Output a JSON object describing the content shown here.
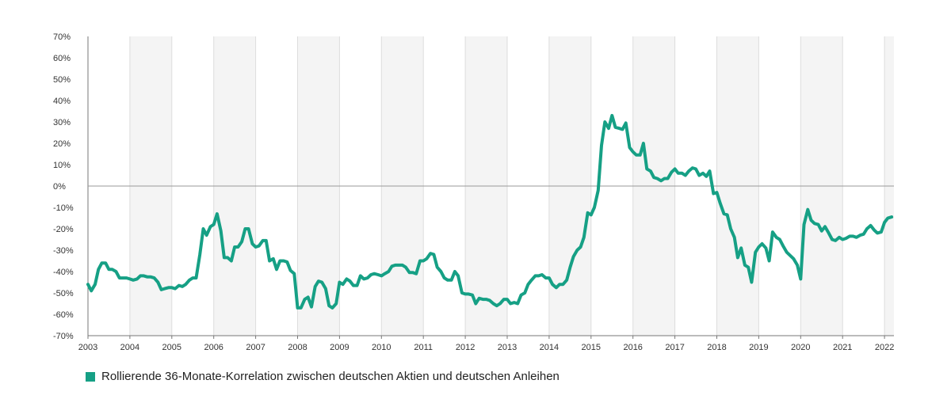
{
  "chart_data": {
    "type": "line",
    "title": "",
    "xlabel": "",
    "ylabel": "",
    "ylim": [
      -70,
      70
    ],
    "xlim": [
      2003.0,
      2022.25
    ],
    "y_ticks": [
      70,
      60,
      50,
      40,
      30,
      20,
      10,
      0,
      -10,
      -20,
      -30,
      -40,
      -50,
      -60,
      -70
    ],
    "y_tick_labels": [
      "70%",
      "60%",
      "50%",
      "40%",
      "30%",
      "20%",
      "10%",
      "0%",
      "-10%",
      "-20%",
      "-30%",
      "-40%",
      "-50%",
      "-60%",
      "-70%"
    ],
    "x_ticks": [
      2003,
      2004,
      2005,
      2006,
      2007,
      2008,
      2009,
      2010,
      2011,
      2012,
      2013,
      2014,
      2015,
      2016,
      2017,
      2018,
      2019,
      2020,
      2021,
      2022
    ],
    "x_tick_labels": [
      "2003",
      "2004",
      "2005",
      "2006",
      "2007",
      "2008",
      "2009",
      "2010",
      "2011",
      "2012",
      "2013",
      "2014",
      "2015",
      "2016",
      "2017",
      "2018",
      "2019",
      "2020",
      "2021",
      "2022"
    ],
    "grid": "alternating-vertical-bands",
    "legend_position": "bottom-left",
    "colors": {
      "series": "#16a085",
      "band": "#f4f4f4",
      "band_line": "#dddddd",
      "zero_line": "#999999",
      "axis": "#777777"
    },
    "series": [
      {
        "name": "Rollierende 36-Monate-Korrelation zwischen deutschen Aktien und deutschen Anleihen",
        "points": [
          [
            2003.0,
            -46
          ],
          [
            2003.08,
            -49
          ],
          [
            2003.17,
            -46
          ],
          [
            2003.25,
            -39
          ],
          [
            2003.33,
            -36
          ],
          [
            2003.42,
            -36
          ],
          [
            2003.5,
            -39
          ],
          [
            2003.58,
            -39
          ],
          [
            2003.67,
            -40
          ],
          [
            2003.75,
            -43
          ],
          [
            2003.83,
            -43
          ],
          [
            2003.92,
            -43
          ],
          [
            2004.0,
            -43.5
          ],
          [
            2004.08,
            -44
          ],
          [
            2004.17,
            -43.5
          ],
          [
            2004.25,
            -42
          ],
          [
            2004.33,
            -42
          ],
          [
            2004.42,
            -42.5
          ],
          [
            2004.5,
            -42.5
          ],
          [
            2004.58,
            -43
          ],
          [
            2004.67,
            -45
          ],
          [
            2004.75,
            -48.5
          ],
          [
            2004.83,
            -48
          ],
          [
            2004.92,
            -47.5
          ],
          [
            2005.0,
            -47.5
          ],
          [
            2005.08,
            -48
          ],
          [
            2005.17,
            -46.5
          ],
          [
            2005.25,
            -47
          ],
          [
            2005.33,
            -46
          ],
          [
            2005.42,
            -44
          ],
          [
            2005.5,
            -43
          ],
          [
            2005.58,
            -43
          ],
          [
            2005.67,
            -32
          ],
          [
            2005.75,
            -20
          ],
          [
            2005.83,
            -23
          ],
          [
            2005.92,
            -19
          ],
          [
            2006.0,
            -18
          ],
          [
            2006.08,
            -13
          ],
          [
            2006.17,
            -21
          ],
          [
            2006.25,
            -33.5
          ],
          [
            2006.33,
            -33.5
          ],
          [
            2006.42,
            -35
          ],
          [
            2006.5,
            -28.5
          ],
          [
            2006.58,
            -28.5
          ],
          [
            2006.67,
            -26
          ],
          [
            2006.75,
            -20
          ],
          [
            2006.83,
            -20
          ],
          [
            2006.92,
            -27
          ],
          [
            2007.0,
            -28.5
          ],
          [
            2007.08,
            -28
          ],
          [
            2007.17,
            -25.5
          ],
          [
            2007.25,
            -25.5
          ],
          [
            2007.33,
            -35
          ],
          [
            2007.42,
            -34
          ],
          [
            2007.5,
            -39
          ],
          [
            2007.58,
            -35
          ],
          [
            2007.67,
            -35
          ],
          [
            2007.75,
            -35.5
          ],
          [
            2007.83,
            -39.5
          ],
          [
            2007.92,
            -41
          ],
          [
            2008.0,
            -57
          ],
          [
            2008.08,
            -57
          ],
          [
            2008.17,
            -53
          ],
          [
            2008.25,
            -52
          ],
          [
            2008.33,
            -56.5
          ],
          [
            2008.42,
            -47
          ],
          [
            2008.5,
            -44.5
          ],
          [
            2008.58,
            -45
          ],
          [
            2008.67,
            -48
          ],
          [
            2008.75,
            -56
          ],
          [
            2008.83,
            -57
          ],
          [
            2008.92,
            -55
          ],
          [
            2009.0,
            -45
          ],
          [
            2009.08,
            -46
          ],
          [
            2009.17,
            -43.5
          ],
          [
            2009.25,
            -44.5
          ],
          [
            2009.33,
            -46.5
          ],
          [
            2009.42,
            -46.5
          ],
          [
            2009.5,
            -42
          ],
          [
            2009.58,
            -43.5
          ],
          [
            2009.67,
            -43
          ],
          [
            2009.75,
            -41.5
          ],
          [
            2009.83,
            -41
          ],
          [
            2009.92,
            -41.5
          ],
          [
            2010.0,
            -42
          ],
          [
            2010.08,
            -41
          ],
          [
            2010.17,
            -40
          ],
          [
            2010.25,
            -37.5
          ],
          [
            2010.33,
            -37
          ],
          [
            2010.42,
            -37
          ],
          [
            2010.5,
            -37
          ],
          [
            2010.58,
            -38
          ],
          [
            2010.67,
            -40.5
          ],
          [
            2010.75,
            -40.5
          ],
          [
            2010.83,
            -41
          ],
          [
            2010.92,
            -35
          ],
          [
            2011.0,
            -35
          ],
          [
            2011.08,
            -34
          ],
          [
            2011.17,
            -31.5
          ],
          [
            2011.25,
            -32
          ],
          [
            2011.33,
            -38
          ],
          [
            2011.42,
            -40
          ],
          [
            2011.5,
            -43
          ],
          [
            2011.58,
            -44
          ],
          [
            2011.67,
            -44
          ],
          [
            2011.75,
            -40
          ],
          [
            2011.83,
            -42
          ],
          [
            2011.92,
            -50
          ],
          [
            2012.0,
            -50.5
          ],
          [
            2012.08,
            -50.5
          ],
          [
            2012.17,
            -51
          ],
          [
            2012.25,
            -55
          ],
          [
            2012.33,
            -52.5
          ],
          [
            2012.42,
            -53
          ],
          [
            2012.5,
            -53
          ],
          [
            2012.58,
            -53.5
          ],
          [
            2012.67,
            -55
          ],
          [
            2012.75,
            -56
          ],
          [
            2012.83,
            -55
          ],
          [
            2012.92,
            -53
          ],
          [
            2013.0,
            -53
          ],
          [
            2013.08,
            -55
          ],
          [
            2013.17,
            -54.5
          ],
          [
            2013.25,
            -55
          ],
          [
            2013.33,
            -51
          ],
          [
            2013.42,
            -50
          ],
          [
            2013.5,
            -46
          ],
          [
            2013.58,
            -44
          ],
          [
            2013.67,
            -42
          ],
          [
            2013.75,
            -42
          ],
          [
            2013.83,
            -41.5
          ],
          [
            2013.92,
            -43
          ],
          [
            2014.0,
            -43
          ],
          [
            2014.08,
            -46
          ],
          [
            2014.17,
            -47.5
          ],
          [
            2014.25,
            -46
          ],
          [
            2014.33,
            -46
          ],
          [
            2014.42,
            -44
          ],
          [
            2014.5,
            -38
          ],
          [
            2014.58,
            -33
          ],
          [
            2014.67,
            -30
          ],
          [
            2014.75,
            -28.5
          ],
          [
            2014.83,
            -24
          ],
          [
            2014.92,
            -12.5
          ],
          [
            2015.0,
            -13.5
          ],
          [
            2015.08,
            -10
          ],
          [
            2015.17,
            -2
          ],
          [
            2015.25,
            19
          ],
          [
            2015.33,
            30
          ],
          [
            2015.42,
            27
          ],
          [
            2015.5,
            33
          ],
          [
            2015.58,
            27.5
          ],
          [
            2015.67,
            27
          ],
          [
            2015.75,
            26.5
          ],
          [
            2015.83,
            29.5
          ],
          [
            2015.92,
            18
          ],
          [
            2016.0,
            16
          ],
          [
            2016.08,
            14.5
          ],
          [
            2016.17,
            14.5
          ],
          [
            2016.25,
            20
          ],
          [
            2016.33,
            8
          ],
          [
            2016.42,
            7
          ],
          [
            2016.5,
            4
          ],
          [
            2016.58,
            3.5
          ],
          [
            2016.67,
            2.5
          ],
          [
            2016.75,
            3.5
          ],
          [
            2016.83,
            3.5
          ],
          [
            2016.92,
            6.5
          ],
          [
            2017.0,
            8
          ],
          [
            2017.08,
            6
          ],
          [
            2017.17,
            6
          ],
          [
            2017.25,
            5
          ],
          [
            2017.33,
            7
          ],
          [
            2017.42,
            8.5
          ],
          [
            2017.5,
            8
          ],
          [
            2017.58,
            5
          ],
          [
            2017.67,
            6
          ],
          [
            2017.75,
            4.5
          ],
          [
            2017.83,
            7
          ],
          [
            2017.92,
            -3.5
          ],
          [
            2018.0,
            -3
          ],
          [
            2018.08,
            -8
          ],
          [
            2018.17,
            -13
          ],
          [
            2018.25,
            -13.5
          ],
          [
            2018.33,
            -20
          ],
          [
            2018.42,
            -24
          ],
          [
            2018.5,
            -33.5
          ],
          [
            2018.58,
            -29
          ],
          [
            2018.67,
            -37
          ],
          [
            2018.75,
            -38
          ],
          [
            2018.83,
            -45
          ],
          [
            2018.92,
            -31
          ],
          [
            2019.0,
            -28.5
          ],
          [
            2019.08,
            -27
          ],
          [
            2019.17,
            -29
          ],
          [
            2019.25,
            -35
          ],
          [
            2019.33,
            -21.5
          ],
          [
            2019.42,
            -24
          ],
          [
            2019.5,
            -25
          ],
          [
            2019.58,
            -28
          ],
          [
            2019.67,
            -31
          ],
          [
            2019.75,
            -32.5
          ],
          [
            2019.83,
            -34
          ],
          [
            2019.92,
            -37
          ],
          [
            2020.0,
            -43.5
          ],
          [
            2020.08,
            -18
          ],
          [
            2020.17,
            -11
          ],
          [
            2020.25,
            -16
          ],
          [
            2020.33,
            -17.5
          ],
          [
            2020.42,
            -18
          ],
          [
            2020.5,
            -21
          ],
          [
            2020.58,
            -19
          ],
          [
            2020.67,
            -22
          ],
          [
            2020.75,
            -25
          ],
          [
            2020.83,
            -25.5
          ],
          [
            2020.92,
            -24
          ],
          [
            2021.0,
            -25
          ],
          [
            2021.08,
            -24.5
          ],
          [
            2021.17,
            -23.5
          ],
          [
            2021.25,
            -23.5
          ],
          [
            2021.33,
            -24
          ],
          [
            2021.42,
            -23
          ],
          [
            2021.5,
            -22.5
          ],
          [
            2021.58,
            -20
          ],
          [
            2021.67,
            -18.5
          ],
          [
            2021.75,
            -20.5
          ],
          [
            2021.83,
            -22
          ],
          [
            2021.92,
            -21.5
          ],
          [
            2022.0,
            -17
          ],
          [
            2022.08,
            -15
          ],
          [
            2022.17,
            -14.5
          ]
        ]
      }
    ]
  }
}
